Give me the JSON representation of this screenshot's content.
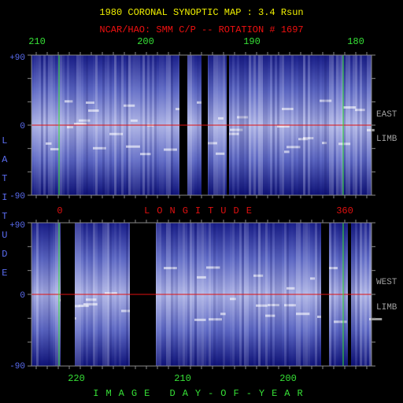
{
  "title": "1980 CORONAL SYNOPTIC MAP : 3.4 Rsun",
  "subtitle": "NCAR/HAO: SMM C/P -- ROTATION # 1697",
  "top_panel": {
    "x_labels": [
      "210",
      "200",
      "190",
      "180"
    ],
    "y_labels": [
      "+90",
      "0",
      "-90"
    ],
    "side_labels": [
      "EAST",
      "LIMB"
    ]
  },
  "middle_axis": {
    "start": "0",
    "title": "LONGITUDE",
    "end": "360"
  },
  "y_axis_title": "LATITUDE",
  "bottom_panel": {
    "x_labels": [
      "220",
      "210",
      "200"
    ],
    "y_labels": [
      "+90",
      "0",
      "-90"
    ],
    "side_labels": [
      "WEST",
      "LIMB"
    ],
    "x_title": "IMAGE DAY-OF-YEAR"
  }
}
